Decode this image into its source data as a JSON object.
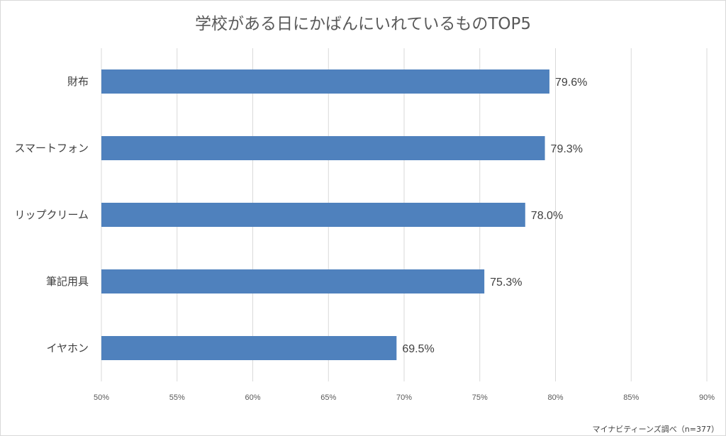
{
  "chart_data": {
    "type": "bar",
    "orientation": "horizontal",
    "title": "学校がある日にかばんにいれているものTOP5",
    "categories": [
      "財布",
      "スマートフォン",
      "リップクリーム",
      "筆記用具",
      "イヤホン"
    ],
    "values": [
      79.6,
      79.3,
      78.0,
      75.3,
      69.5
    ],
    "value_labels": [
      "79.6%",
      "79.3%",
      "78.0%",
      "75.3%",
      "69.5%"
    ],
    "xlim": [
      50,
      90
    ],
    "x_ticks": [
      50,
      55,
      60,
      65,
      70,
      75,
      80,
      85,
      90
    ],
    "x_tick_labels": [
      "50%",
      "55%",
      "60%",
      "65%",
      "70%",
      "75%",
      "80%",
      "85%",
      "90%"
    ],
    "grid": true,
    "bar_color": "#4f81bd",
    "legend": "none"
  },
  "source_note": "マイナビティーンズ調べ（n=377）"
}
